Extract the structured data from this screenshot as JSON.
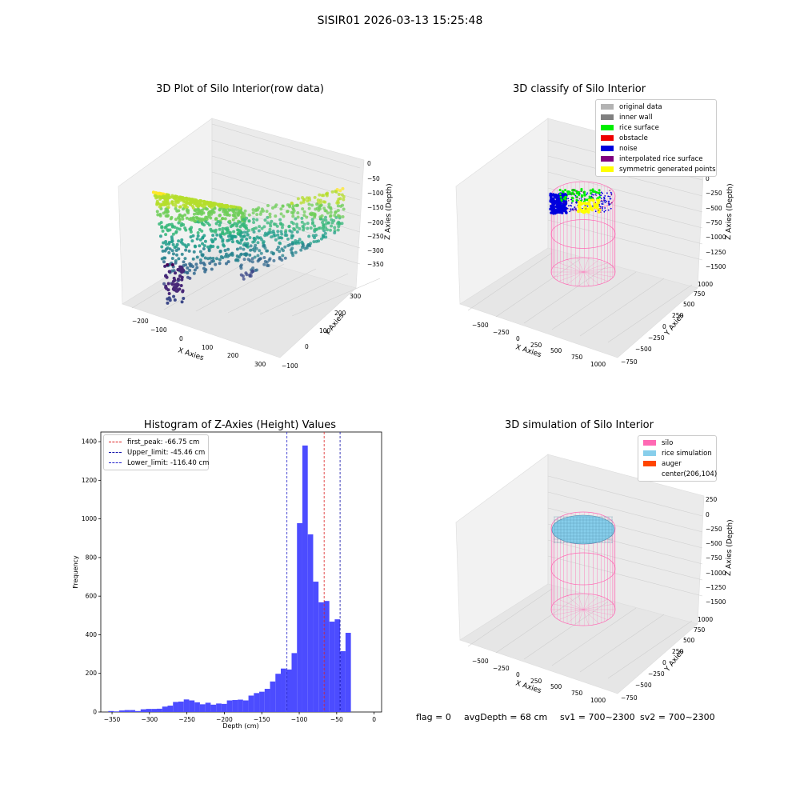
{
  "figure": {
    "suptitle": "SISIR01 2026-03-13 15:25:48"
  },
  "chart_data": [
    {
      "type": "scatter",
      "title": "3D Plot of Silo Interior(row data)",
      "xlabel": "X Axies",
      "ylabel": "Y Axies",
      "zlabel": "Z Axies (Depth)",
      "x_ticks": [
        "−200",
        "−100",
        "0",
        "100",
        "200",
        "300"
      ],
      "y_ticks": [
        "−100",
        "0",
        "100",
        "200",
        "300"
      ],
      "z_ticks": [
        "0",
        "−50",
        "−100",
        "−150",
        "−200",
        "−250",
        "−300",
        "−350"
      ],
      "xlim": [
        -230,
        330
      ],
      "ylim": [
        -110,
        330
      ],
      "zlim": [
        -370,
        0
      ],
      "colormap": "viridis"
    },
    {
      "type": "scatter",
      "title": "3D classify of Silo Interior",
      "xlabel": "X Axies",
      "ylabel": "Y Axies",
      "zlabel": "Z Axies (Depth)",
      "x_ticks": [
        "−500",
        "−250",
        "0",
        "250",
        "500",
        "750",
        "1000"
      ],
      "y_ticks": [
        "−750",
        "−500",
        "−250",
        "0",
        "250",
        "500",
        "750",
        "1000"
      ],
      "z_ticks": [
        "0",
        "−250",
        "−500",
        "−750",
        "−1000",
        "−1250",
        "−1500"
      ],
      "z_top_partial": "10",
      "legend": [
        {
          "label": "original data",
          "color": "#b3b3b3"
        },
        {
          "label": "inner wall",
          "color": "#808080"
        },
        {
          "label": "rice surface",
          "color": "#00ee00"
        },
        {
          "label": "obstacle",
          "color": "#ee0000"
        },
        {
          "label": "noise",
          "color": "#0000dd"
        },
        {
          "label": "interpolated rice surface",
          "color": "#800080"
        },
        {
          "label": "symmetric generated points",
          "color": "#ffff00"
        }
      ],
      "silo_color": "#ff69b4"
    },
    {
      "type": "bar",
      "title": "Histogram of Z-Axies (Height) Values",
      "xlabel": "Depth (cm)",
      "ylabel": "Frequency",
      "xlim": [
        -365,
        10
      ],
      "ylim": [
        0,
        1450
      ],
      "x_ticks": [
        -350,
        -300,
        -250,
        -200,
        -150,
        -100,
        -50,
        0
      ],
      "y_ticks": [
        0,
        200,
        400,
        600,
        800,
        1000,
        1200,
        1400
      ],
      "bar_color": "#4c4cff",
      "bin_width": 7.2,
      "bin_start": -355,
      "values": [
        5,
        3,
        8,
        10,
        10,
        5,
        14,
        16,
        16,
        17,
        28,
        33,
        52,
        54,
        65,
        60,
        50,
        40,
        48,
        38,
        44,
        42,
        60,
        62,
        64,
        60,
        85,
        98,
        105,
        120,
        158,
        198,
        225,
        220,
        305,
        978,
        1380,
        920,
        675,
        568,
        575,
        468,
        480,
        315,
        410
      ],
      "vlines": [
        {
          "label": "first_peak: -66.75 cm",
          "value": -66.75,
          "color": "#dd2222"
        },
        {
          "label": "Upper_limit: -45.46 cm",
          "value": -45.46,
          "color": "#1111aa"
        },
        {
          "label": "Lower_limit: -116.40 cm",
          "value": -116.4,
          "color": "#2222cc"
        }
      ]
    },
    {
      "type": "scatter",
      "title": "3D simulation of Silo Interior",
      "xlabel": "X Axies",
      "ylabel": "Y Axies",
      "zlabel": "Z Axies (Depth)",
      "x_ticks": [
        "−500",
        "−250",
        "0",
        "250",
        "500",
        "750",
        "1000"
      ],
      "y_ticks": [
        "−750",
        "−500",
        "−250",
        "0",
        "250",
        "500",
        "750",
        "1000"
      ],
      "z_ticks": [
        "250",
        "0",
        "−250",
        "−500",
        "−750",
        "−1000",
        "−1250",
        "−1500"
      ],
      "legend": [
        {
          "label": "silo",
          "color": "#ff69b4"
        },
        {
          "label": "rice simulation",
          "color": "#87ceeb"
        },
        {
          "label": "auger",
          "color": "#ff4500"
        },
        {
          "label": "center(206,104)",
          "color": ""
        }
      ]
    }
  ],
  "status": {
    "flag": "flag = 0",
    "avg_depth": "avgDepth = 68 cm",
    "sv1": "sv1 = 700~2300",
    "sv2": "sv2 = 700~2300"
  }
}
